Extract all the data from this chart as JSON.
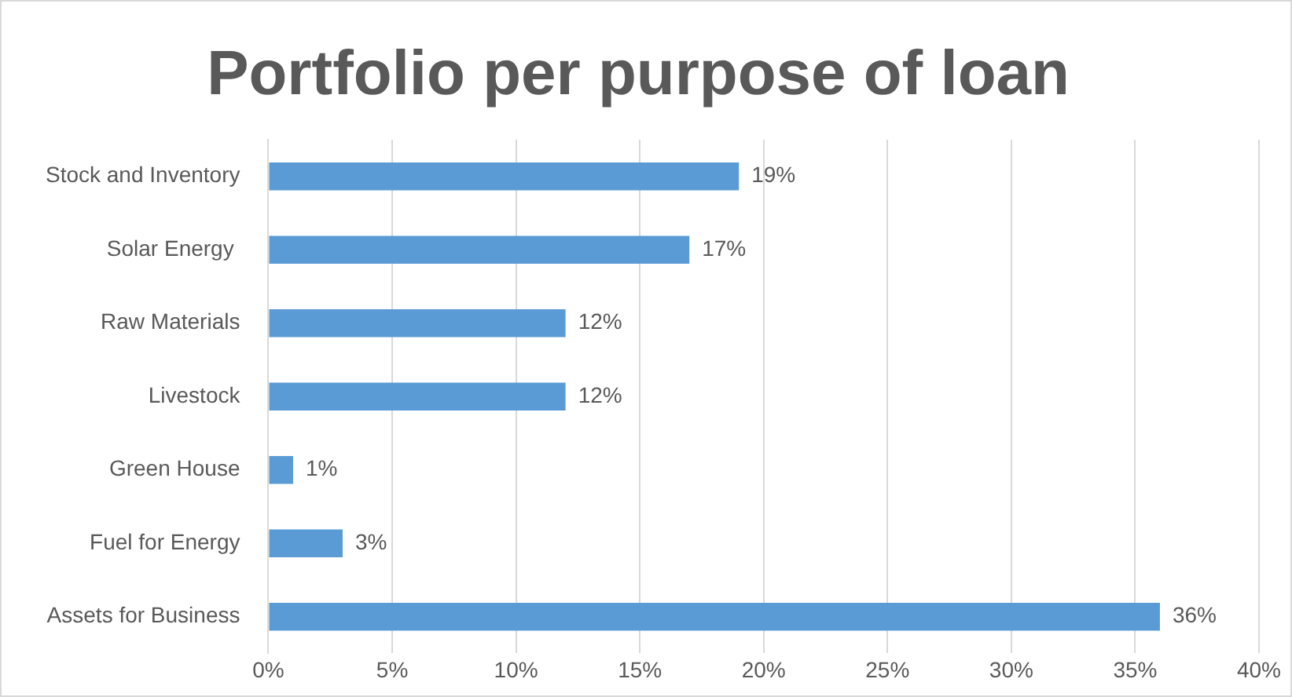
{
  "chart_data": {
    "type": "bar",
    "orientation": "horizontal",
    "title": "Portfolio per purpose of loan",
    "categories": [
      "Stock and Inventory",
      "Solar Energy ",
      "Raw Materials",
      "Livestock",
      "Green House",
      "Fuel for Energy",
      "Assets for Business"
    ],
    "values": [
      19,
      17,
      12,
      12,
      1,
      3,
      36
    ],
    "value_labels": [
      "19%",
      "17%",
      "12%",
      "12%",
      "1%",
      "3%",
      "36%"
    ],
    "color": "#5b9bd5",
    "xlim": [
      0,
      40
    ],
    "xticks": [
      {
        "value": 0,
        "label": "0%"
      },
      {
        "value": 5,
        "label": "5%"
      },
      {
        "value": 10,
        "label": "10%"
      },
      {
        "value": 15,
        "label": "15%"
      },
      {
        "value": 20,
        "label": "20%"
      },
      {
        "value": 25,
        "label": "25%"
      },
      {
        "value": 30,
        "label": "30%"
      },
      {
        "value": 35,
        "label": "35%"
      },
      {
        "value": 40,
        "label": "40%"
      }
    ],
    "grid": "x",
    "legend": false
  }
}
